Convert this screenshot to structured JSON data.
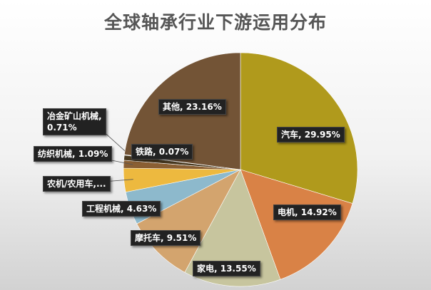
{
  "chart_data": {
    "type": "pie",
    "title": "全球轴承行业下游运用分布",
    "slices": [
      {
        "name": "汽车",
        "value": 29.95,
        "label": "汽车, 29.95%",
        "color": "#b09a1c"
      },
      {
        "name": "电机",
        "value": 14.92,
        "label": "电机, 14.92%",
        "color": "#d98246"
      },
      {
        "name": "家电",
        "value": 13.55,
        "label": "家电, 13.55%",
        "color": "#c7c59e"
      },
      {
        "name": "摩托车",
        "value": 9.51,
        "label": "摩托车, 9.51%",
        "color": "#d3a46e"
      },
      {
        "name": "工程机械",
        "value": 4.63,
        "label": "工程机械, 4.63%",
        "color": "#8db9cc"
      },
      {
        "name": "农机/农用车",
        "value": 3.31,
        "label": "农机/农用车,...",
        "color": "#edb93f"
      },
      {
        "name": "纺织机械",
        "value": 1.09,
        "label": "纺织机械, 1.09%",
        "color": "#8a5f33"
      },
      {
        "name": "冶金矿山机械",
        "value": 0.71,
        "label": "冶金矿山机械,\n0.71%",
        "color": "#4a3a20"
      },
      {
        "name": "铁路",
        "value": 0.07,
        "label": "铁路, 0.07%",
        "color": "#6a5a40"
      },
      {
        "name": "其他",
        "value": 23.16,
        "label": "其他, 23.16%",
        "color": "#735436"
      }
    ]
  }
}
